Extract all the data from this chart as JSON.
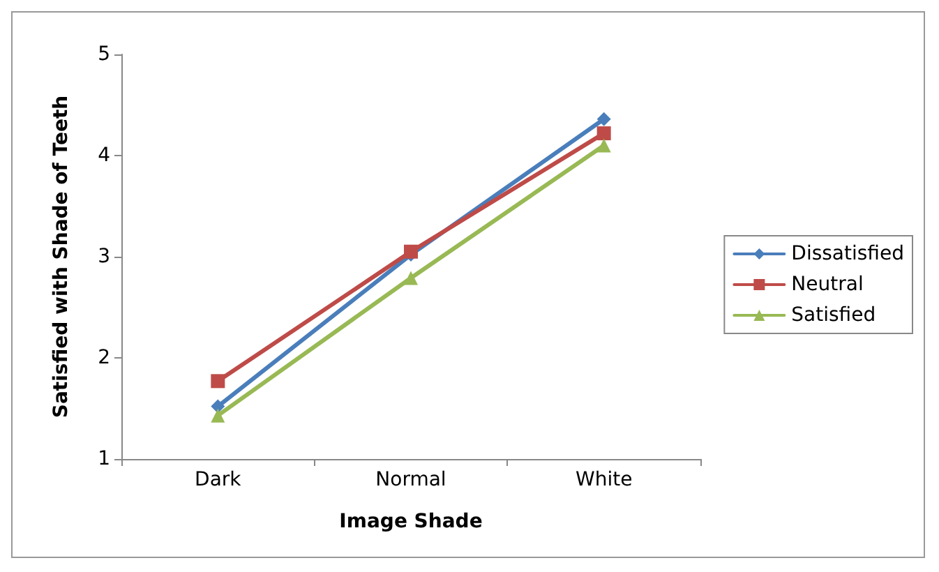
{
  "chart_data": {
    "type": "line",
    "xlabel": "Image Shade",
    "ylabel": "Satisfied with Shade of Teeth",
    "categories": [
      "Dark",
      "Normal",
      "White"
    ],
    "series": [
      {
        "name": "Dissatisfied",
        "color": "#4a7ebb",
        "marker": "diamond",
        "values": [
          1.52,
          3.02,
          4.36
        ]
      },
      {
        "name": "Neutral",
        "color": "#be4b48",
        "marker": "square",
        "values": [
          1.77,
          3.05,
          4.22
        ]
      },
      {
        "name": "Satisfied",
        "color": "#98b954",
        "marker": "triangle",
        "values": [
          1.43,
          2.79,
          4.1
        ]
      }
    ],
    "ylim": [
      1,
      5
    ],
    "yticks": [
      1,
      2,
      3,
      4,
      5
    ],
    "grid": false,
    "legend": "right",
    "line_style": "solid"
  }
}
